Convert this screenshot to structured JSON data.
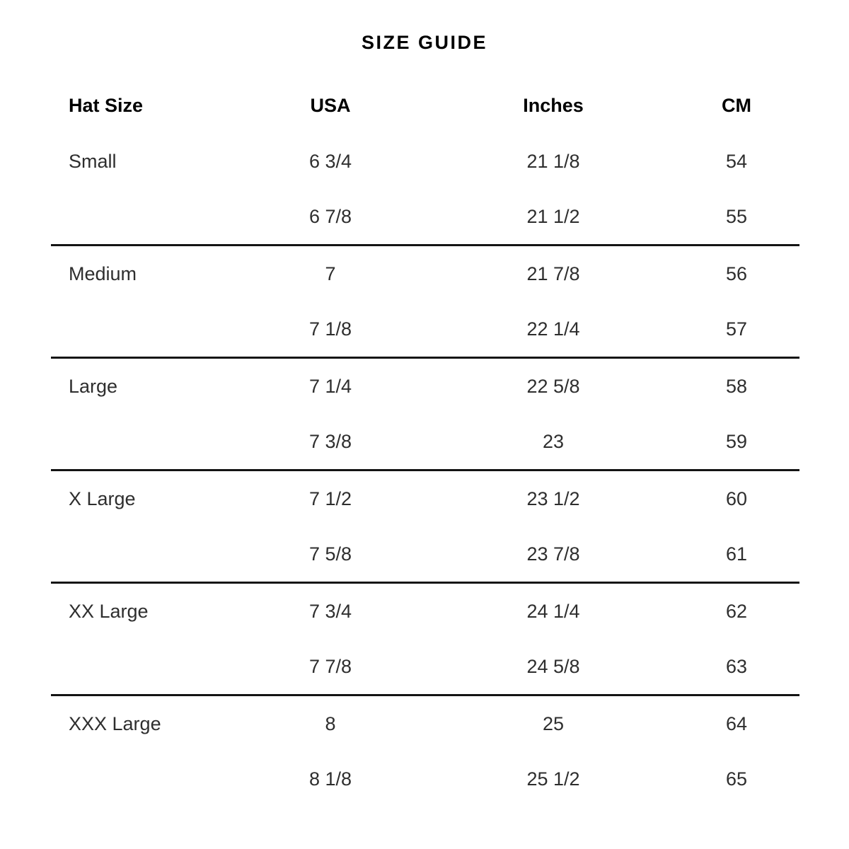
{
  "title": "SIZE GUIDE",
  "colors": {
    "background": "#ffffff",
    "title_text": "#000000",
    "header_text": "#000000",
    "body_text": "#2e2e2e",
    "divider": "#141414"
  },
  "chart_data": {
    "type": "table",
    "title": "SIZE GUIDE",
    "columns": [
      "Hat Size",
      "USA",
      "Inches",
      "CM"
    ],
    "rows": [
      [
        "Small",
        "6 3/4",
        "21 1/8",
        "54"
      ],
      [
        "",
        "6 7/8",
        "21 1/2",
        "55"
      ],
      [
        "Medium",
        "7",
        "21 7/8",
        "56"
      ],
      [
        "",
        "7 1/8",
        "22 1/4",
        "57"
      ],
      [
        "Large",
        "7 1/4",
        "22 5/8",
        "58"
      ],
      [
        "",
        "7 3/8",
        "23",
        "59"
      ],
      [
        "X Large",
        "7 1/2",
        "23 1/2",
        "60"
      ],
      [
        "",
        "7 5/8",
        "23 7/8",
        "61"
      ],
      [
        "XX Large",
        "7 3/4",
        "24 1/4",
        "62"
      ],
      [
        "",
        "7 7/8",
        "24 5/8",
        "63"
      ],
      [
        "XXX Large",
        "8",
        "25",
        "64"
      ],
      [
        "",
        "8 1/8",
        "25 1/2",
        "65"
      ]
    ],
    "layout": {
      "grouped_in_pairs": true,
      "divider_after_rows": [
        1,
        3,
        5,
        7,
        9
      ],
      "column_alignment": [
        "left",
        "center",
        "center",
        "center"
      ],
      "grid": false
    }
  }
}
